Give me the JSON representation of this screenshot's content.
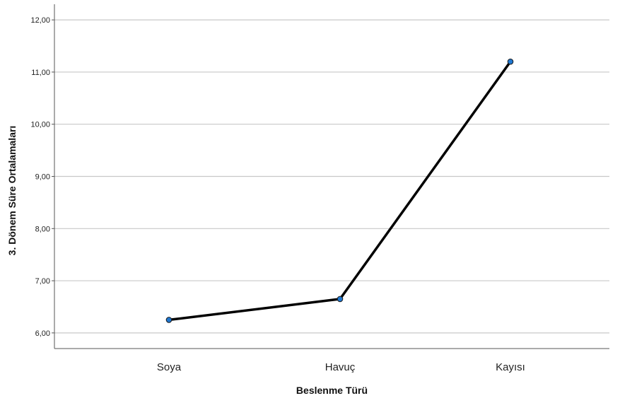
{
  "chart_data": {
    "type": "line",
    "title": "",
    "xlabel": "Beslenme Türü",
    "ylabel": "3. Dönem Süre Ortalamaları",
    "categories": [
      "Soya",
      "Havuç",
      "Kayısı"
    ],
    "series": [
      {
        "values": [
          6.25,
          6.65,
          11.2
        ]
      }
    ],
    "ylim": [
      5.7,
      12.3
    ],
    "yticks": [
      6,
      7,
      8,
      9,
      10,
      11,
      12
    ],
    "ytick_labels": [
      "6,00",
      "7,00",
      "8,00",
      "9,00",
      "10,00",
      "11,00",
      "12,00"
    ],
    "grid": true,
    "line_color": "#000000",
    "marker_color": "#1f77d0"
  }
}
